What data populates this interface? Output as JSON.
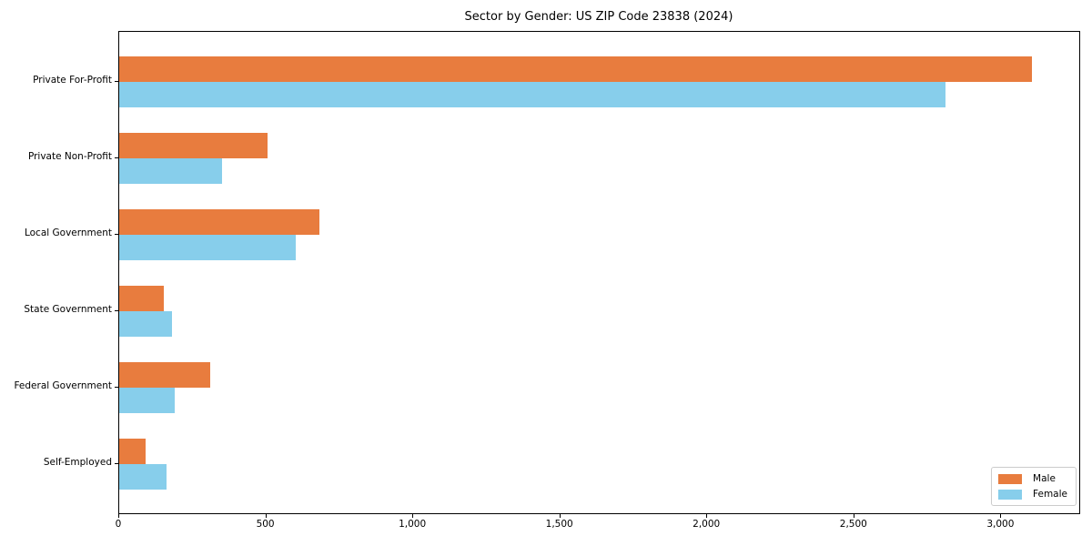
{
  "chart_data": {
    "type": "bar",
    "orientation": "horizontal",
    "title": "Sector by Gender: US ZIP Code 23838 (2024)",
    "xlabel": "",
    "ylabel": "",
    "categories": [
      "Private For-Profit",
      "Private Non-Profit",
      "Local Government",
      "State Government",
      "Federal Government",
      "Self-Employed"
    ],
    "series": [
      {
        "name": "Male",
        "color": "#e87c3e",
        "values": [
          3105,
          505,
          680,
          150,
          310,
          90
        ]
      },
      {
        "name": "Female",
        "color": "#87ceeb",
        "values": [
          2810,
          350,
          600,
          180,
          190,
          160
        ]
      }
    ],
    "xlim": [
      0,
      3265
    ],
    "xticks": [
      0,
      500,
      1000,
      1500,
      2000,
      2500,
      3000
    ],
    "xtick_labels": [
      "0",
      "500",
      "1,000",
      "1,500",
      "2,000",
      "2,500",
      "3,000"
    ],
    "grid": false,
    "legend_position": "lower right"
  }
}
